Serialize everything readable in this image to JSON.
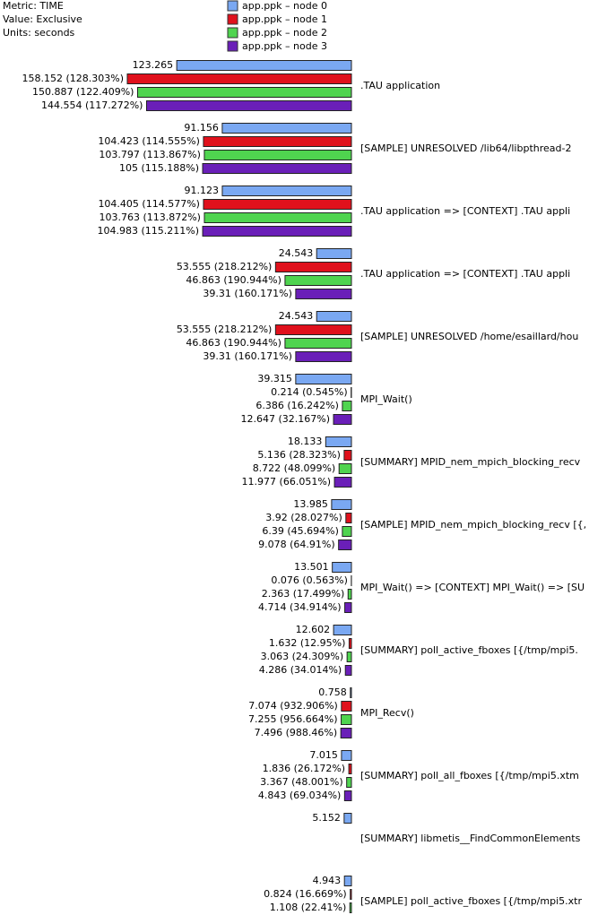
{
  "chart_data": {
    "type": "bar",
    "orientation": "horizontal",
    "annotations": [
      "Metric: TIME",
      "Value: Exclusive",
      "Units: seconds"
    ],
    "categories": [
      ".TAU application",
      "[SAMPLE] UNRESOLVED /lib64/libpthread-2",
      ".TAU application => [CONTEXT] .TAU appli",
      ".TAU application => [CONTEXT] .TAU appli",
      "[SAMPLE] UNRESOLVED /home/esaillard/hou",
      "MPI_Wait()",
      "[SUMMARY] MPID_nem_mpich_blocking_recv",
      "[SAMPLE] MPID_nem_mpich_blocking_recv [{,",
      "MPI_Wait() => [CONTEXT] MPI_Wait() => [SU",
      "[SUMMARY] poll_active_fboxes [{/tmp/mpi5.",
      "MPI_Recv()",
      "[SUMMARY] poll_all_fboxes [{/tmp/mpi5.xtm",
      "[SUMMARY] libmetis__FindCommonElements",
      "[SAMPLE] poll_active_fboxes [{/tmp/mpi5.xtr"
    ],
    "series": [
      {
        "name": "app.ppk – node 0",
        "color": "#7aa8f2",
        "values": [
          123.265,
          91.156,
          91.123,
          24.543,
          24.543,
          39.315,
          18.133,
          13.985,
          13.501,
          12.602,
          0.758,
          7.015,
          5.152,
          4.943
        ]
      },
      {
        "name": "app.ppk – node 1",
        "color": "#e0111c",
        "values": [
          158.152,
          104.423,
          104.405,
          53.555,
          53.555,
          0.214,
          5.136,
          3.92,
          0.076,
          1.632,
          7.074,
          1.836,
          null,
          0.824
        ],
        "value_labels": [
          "158.152 (128.303%)",
          "104.423 (114.555%)",
          "104.405 (114.577%)",
          "53.555 (218.212%)",
          "53.555 (218.212%)",
          "0.214 (0.545%)",
          "5.136 (28.323%)",
          "3.92 (28.027%)",
          "0.076 (0.563%)",
          "1.632 (12.95%)",
          "7.074 (932.906%)",
          "1.836 (26.172%)",
          null,
          "0.824 (16.669%)"
        ]
      },
      {
        "name": "app.ppk – node 2",
        "color": "#4fd44f",
        "values": [
          150.887,
          103.797,
          103.763,
          46.863,
          46.863,
          6.386,
          8.722,
          6.39,
          2.363,
          3.063,
          7.255,
          3.367,
          null,
          1.108
        ],
        "value_labels": [
          "150.887 (122.409%)",
          "103.797 (113.867%)",
          "103.763 (113.872%)",
          "46.863 (190.944%)",
          "46.863 (190.944%)",
          "6.386 (16.242%)",
          "8.722 (48.099%)",
          "6.39 (45.694%)",
          "2.363 (17.499%)",
          "3.063 (24.309%)",
          "7.255 (956.664%)",
          "3.367 (48.001%)",
          null,
          "1.108 (22.41%)"
        ]
      },
      {
        "name": "app.ppk – node 3",
        "color": "#6a1fb8",
        "values": [
          144.554,
          105,
          104.983,
          39.31,
          39.31,
          12.647,
          11.977,
          9.078,
          4.714,
          4.286,
          7.496,
          4.843,
          null,
          null
        ],
        "value_labels": [
          "144.554 (117.272%)",
          "105 (115.188%)",
          "104.983 (115.211%)",
          "39.31 (160.171%)",
          "39.31 (160.171%)",
          "12.647 (32.167%)",
          "11.977 (66.051%)",
          "9.078 (64.91%)",
          "4.714 (34.914%)",
          "4.286 (34.014%)",
          "7.496 (988.46%)",
          "4.843 (69.034%)",
          null,
          null
        ]
      }
    ]
  }
}
